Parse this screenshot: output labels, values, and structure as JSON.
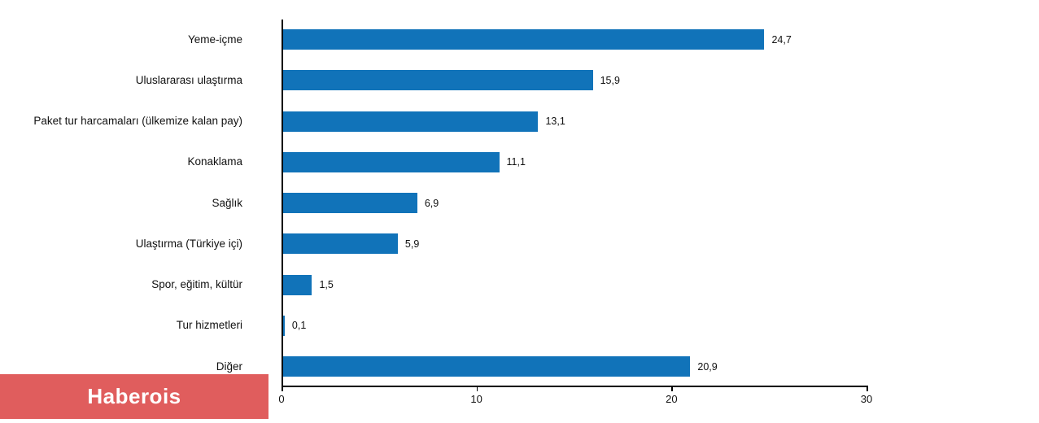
{
  "chart_data": {
    "type": "bar",
    "orientation": "horizontal",
    "title": "",
    "xlabel": "",
    "ylabel": "",
    "categories": [
      "Yeme-içme",
      "Uluslararası ulaştırma",
      "Paket tur harcamaları (ülkemize kalan pay)",
      "Konaklama",
      "Sağlık",
      "Ulaştırma (Türkiye içi)",
      "Spor, eğitim, kültür",
      "Tur hizmetleri",
      "Diğer"
    ],
    "values": [
      24.7,
      15.9,
      13.1,
      11.1,
      6.9,
      5.9,
      1.5,
      0.1,
      20.9
    ],
    "value_labels": [
      "24,7",
      "15,9",
      "13,1",
      "11,1",
      "6,9",
      "5,9",
      "1,5",
      "0,1",
      "20,9"
    ],
    "xlim": [
      0,
      30
    ],
    "x_ticks": [
      0,
      10,
      20,
      30
    ],
    "x_tick_labels": [
      "0",
      "10",
      "20",
      "30"
    ],
    "grid": false,
    "legend": "none",
    "bar_color": "#1173b9",
    "axis_color": "#000000",
    "label_color": "#111111"
  },
  "branding": {
    "label": "Haberois",
    "background": "#e05d5d",
    "text_color": "#ffffff"
  }
}
